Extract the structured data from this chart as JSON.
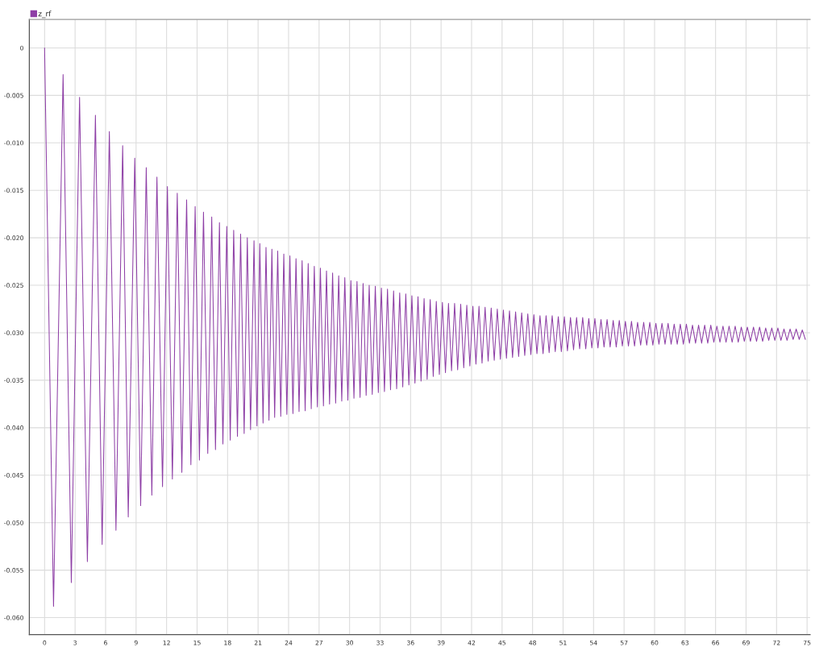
{
  "chart_data": {
    "type": "line",
    "xlim": [
      -1.5,
      75.3
    ],
    "ylim": [
      -0.0618,
      0.003
    ],
    "xticks": [
      0,
      3,
      6,
      9,
      12,
      15,
      18,
      21,
      24,
      27,
      30,
      33,
      36,
      39,
      42,
      45,
      48,
      51,
      54,
      57,
      60,
      63,
      66,
      69,
      72,
      75
    ],
    "yticks": [
      0,
      -0.005,
      {
        "value": -0.01,
        "label": "-0.010"
      },
      -0.015,
      {
        "value": -0.02,
        "label": "-0.020"
      },
      -0.025,
      {
        "value": -0.03,
        "label": "-0.030"
      },
      -0.035,
      {
        "value": -0.04,
        "label": "-0.040"
      },
      -0.045,
      {
        "value": -0.05,
        "label": "-0.050"
      },
      -0.055,
      {
        "value": -0.06,
        "label": "-0.060"
      }
    ],
    "grid": true,
    "legend": "top left",
    "series": [
      {
        "name": "z_rf",
        "color": "#8e3fa6",
        "x": [
          0,
          0.88,
          1.82,
          2.63,
          3.44,
          4.21,
          5.0,
          5.66,
          6.37,
          7.02,
          7.68,
          8.23,
          8.87,
          9.45,
          10.0,
          10.55,
          11.05,
          11.6,
          12.08,
          12.57,
          13.05,
          13.5,
          13.97,
          14.39,
          14.81,
          15.23,
          15.63,
          16.05,
          16.44,
          16.81,
          17.2,
          17.54,
          17.92,
          18.26,
          18.6,
          18.97,
          19.28,
          19.63,
          19.94,
          20.26,
          20.6,
          20.89,
          21.17,
          21.49,
          21.78,
          22.07,
          22.36,
          22.63,
          22.93,
          23.23,
          23.53,
          23.83,
          24.13,
          24.43,
          24.73,
          25.03,
          25.33,
          25.63,
          25.93,
          26.23,
          26.53,
          26.83,
          27.13,
          27.43,
          27.73,
          28.03,
          28.33,
          28.63,
          28.93,
          29.23,
          29.53,
          29.83,
          30.13,
          30.43,
          30.73,
          31.03,
          31.33,
          31.63,
          31.93,
          32.23,
          32.53,
          32.83,
          33.13,
          33.43,
          33.73,
          34.03,
          34.33,
          34.63,
          34.93,
          35.23,
          35.53,
          35.83,
          36.13,
          36.43,
          36.73,
          37.03,
          37.33,
          37.63,
          37.93,
          38.23,
          38.53,
          38.83,
          39.13,
          39.43,
          39.73,
          40.03,
          40.33,
          40.63,
          40.93,
          41.23,
          41.53,
          41.83,
          42.13,
          42.43,
          42.73,
          43.03,
          43.33,
          43.63,
          43.93,
          44.23,
          44.53,
          44.83,
          45.13,
          45.43,
          45.73,
          46.03,
          46.33,
          46.63,
          46.93,
          47.23,
          47.53,
          47.83,
          48.13,
          48.43,
          48.73,
          49.03,
          49.33,
          49.63,
          49.93,
          50.23,
          50.53,
          50.83,
          51.13,
          51.43,
          51.73,
          52.03,
          52.33,
          52.63,
          52.93,
          53.23,
          53.53,
          53.83,
          54.13,
          54.43,
          54.73,
          55.03,
          55.33,
          55.63,
          55.93,
          56.23,
          56.53,
          56.83,
          57.13,
          57.43,
          57.73,
          58.03,
          58.33,
          58.63,
          58.93,
          59.23,
          59.53,
          59.83,
          60.13,
          60.43,
          60.73,
          61.03,
          61.33,
          61.63,
          61.93,
          62.23,
          62.53,
          62.83,
          63.13,
          63.43,
          63.73,
          64.03,
          64.33,
          64.63,
          64.93,
          65.23,
          65.53,
          65.83,
          66.13,
          66.43,
          66.73,
          67.03,
          67.33,
          67.63,
          67.93,
          68.23,
          68.53,
          68.83,
          69.13,
          69.43,
          69.73,
          70.03,
          70.33,
          70.63,
          70.93,
          71.23,
          71.53,
          71.83,
          72.13,
          72.43,
          72.73,
          73.03,
          73.33,
          73.63,
          73.93,
          74.23,
          74.53,
          74.83
        ],
        "values": [
          0,
          -0.0588,
          -0.0028,
          -0.0563,
          -0.0052,
          -0.0541,
          -0.0071,
          -0.0523,
          -0.0088,
          -0.0508,
          -0.0103,
          -0.0494,
          -0.0116,
          -0.0482,
          -0.0126,
          -0.0471,
          -0.0136,
          -0.0462,
          -0.0146,
          -0.0454,
          -0.0153,
          -0.0447,
          -0.016,
          -0.0439,
          -0.0167,
          -0.0434,
          -0.0173,
          -0.0427,
          -0.0178,
          -0.0423,
          -0.0184,
          -0.0417,
          -0.0188,
          -0.0413,
          -0.0192,
          -0.0409,
          -0.0196,
          -0.0406,
          -0.02,
          -0.0402,
          -0.0203,
          -0.0398,
          -0.0206,
          -0.0395,
          -0.021,
          -0.0392,
          -0.0212,
          -0.0389,
          -0.0214,
          -0.0388,
          -0.0217,
          -0.0386,
          -0.0219,
          -0.0385,
          -0.0222,
          -0.0383,
          -0.0224,
          -0.0382,
          -0.0227,
          -0.038,
          -0.023,
          -0.0378,
          -0.0232,
          -0.0377,
          -0.0235,
          -0.0375,
          -0.0237,
          -0.0374,
          -0.024,
          -0.0372,
          -0.0242,
          -0.0371,
          -0.0245,
          -0.0369,
          -0.0246,
          -0.0368,
          -0.0248,
          -0.0366,
          -0.025,
          -0.0365,
          -0.0251,
          -0.0363,
          -0.0253,
          -0.0362,
          -0.0254,
          -0.036,
          -0.0256,
          -0.0359,
          -0.0258,
          -0.0357,
          -0.0259,
          -0.0355,
          -0.0261,
          -0.0353,
          -0.0262,
          -0.0351,
          -0.0264,
          -0.0349,
          -0.0265,
          -0.0346,
          -0.0267,
          -0.0344,
          -0.0268,
          -0.0342,
          -0.0269,
          -0.034,
          -0.0269,
          -0.0339,
          -0.027,
          -0.0337,
          -0.0271,
          -0.0335,
          -0.0272,
          -0.0333,
          -0.0272,
          -0.0332,
          -0.0273,
          -0.033,
          -0.0274,
          -0.0329,
          -0.0275,
          -0.0328,
          -0.0276,
          -0.0327,
          -0.0277,
          -0.0326,
          -0.0278,
          -0.0325,
          -0.0279,
          -0.0324,
          -0.028,
          -0.0323,
          -0.0281,
          -0.0322,
          -0.0282,
          -0.0322,
          -0.0282,
          -0.0321,
          -0.0282,
          -0.032,
          -0.0283,
          -0.032,
          -0.0283,
          -0.0319,
          -0.0284,
          -0.0318,
          -0.0284,
          -0.0317,
          -0.0284,
          -0.0317,
          -0.0285,
          -0.0316,
          -0.0285,
          -0.0316,
          -0.0286,
          -0.0315,
          -0.0286,
          -0.0315,
          -0.0287,
          -0.0315,
          -0.0287,
          -0.0314,
          -0.0288,
          -0.0314,
          -0.0288,
          -0.0314,
          -0.0289,
          -0.0313,
          -0.0289,
          -0.0313,
          -0.0289,
          -0.0313,
          -0.029,
          -0.0312,
          -0.029,
          -0.0312,
          -0.029,
          -0.0312,
          -0.0291,
          -0.0312,
          -0.0291,
          -0.0312,
          -0.0291,
          -0.0311,
          -0.0292,
          -0.0311,
          -0.0292,
          -0.0311,
          -0.0292,
          -0.0311,
          -0.0292,
          -0.031,
          -0.0293,
          -0.031,
          -0.0293,
          -0.031,
          -0.0293,
          -0.031,
          -0.0293,
          -0.031,
          -0.0294,
          -0.0309,
          -0.0294,
          -0.0309,
          -0.0294,
          -0.0309,
          -0.0294,
          -0.0309,
          -0.0295,
          -0.0308,
          -0.0295,
          -0.0308,
          -0.0295,
          -0.0308,
          -0.0296,
          -0.0308,
          -0.0296,
          -0.0307,
          -0.0296,
          -0.0307,
          -0.0297,
          -0.0307
        ]
      }
    ]
  }
}
